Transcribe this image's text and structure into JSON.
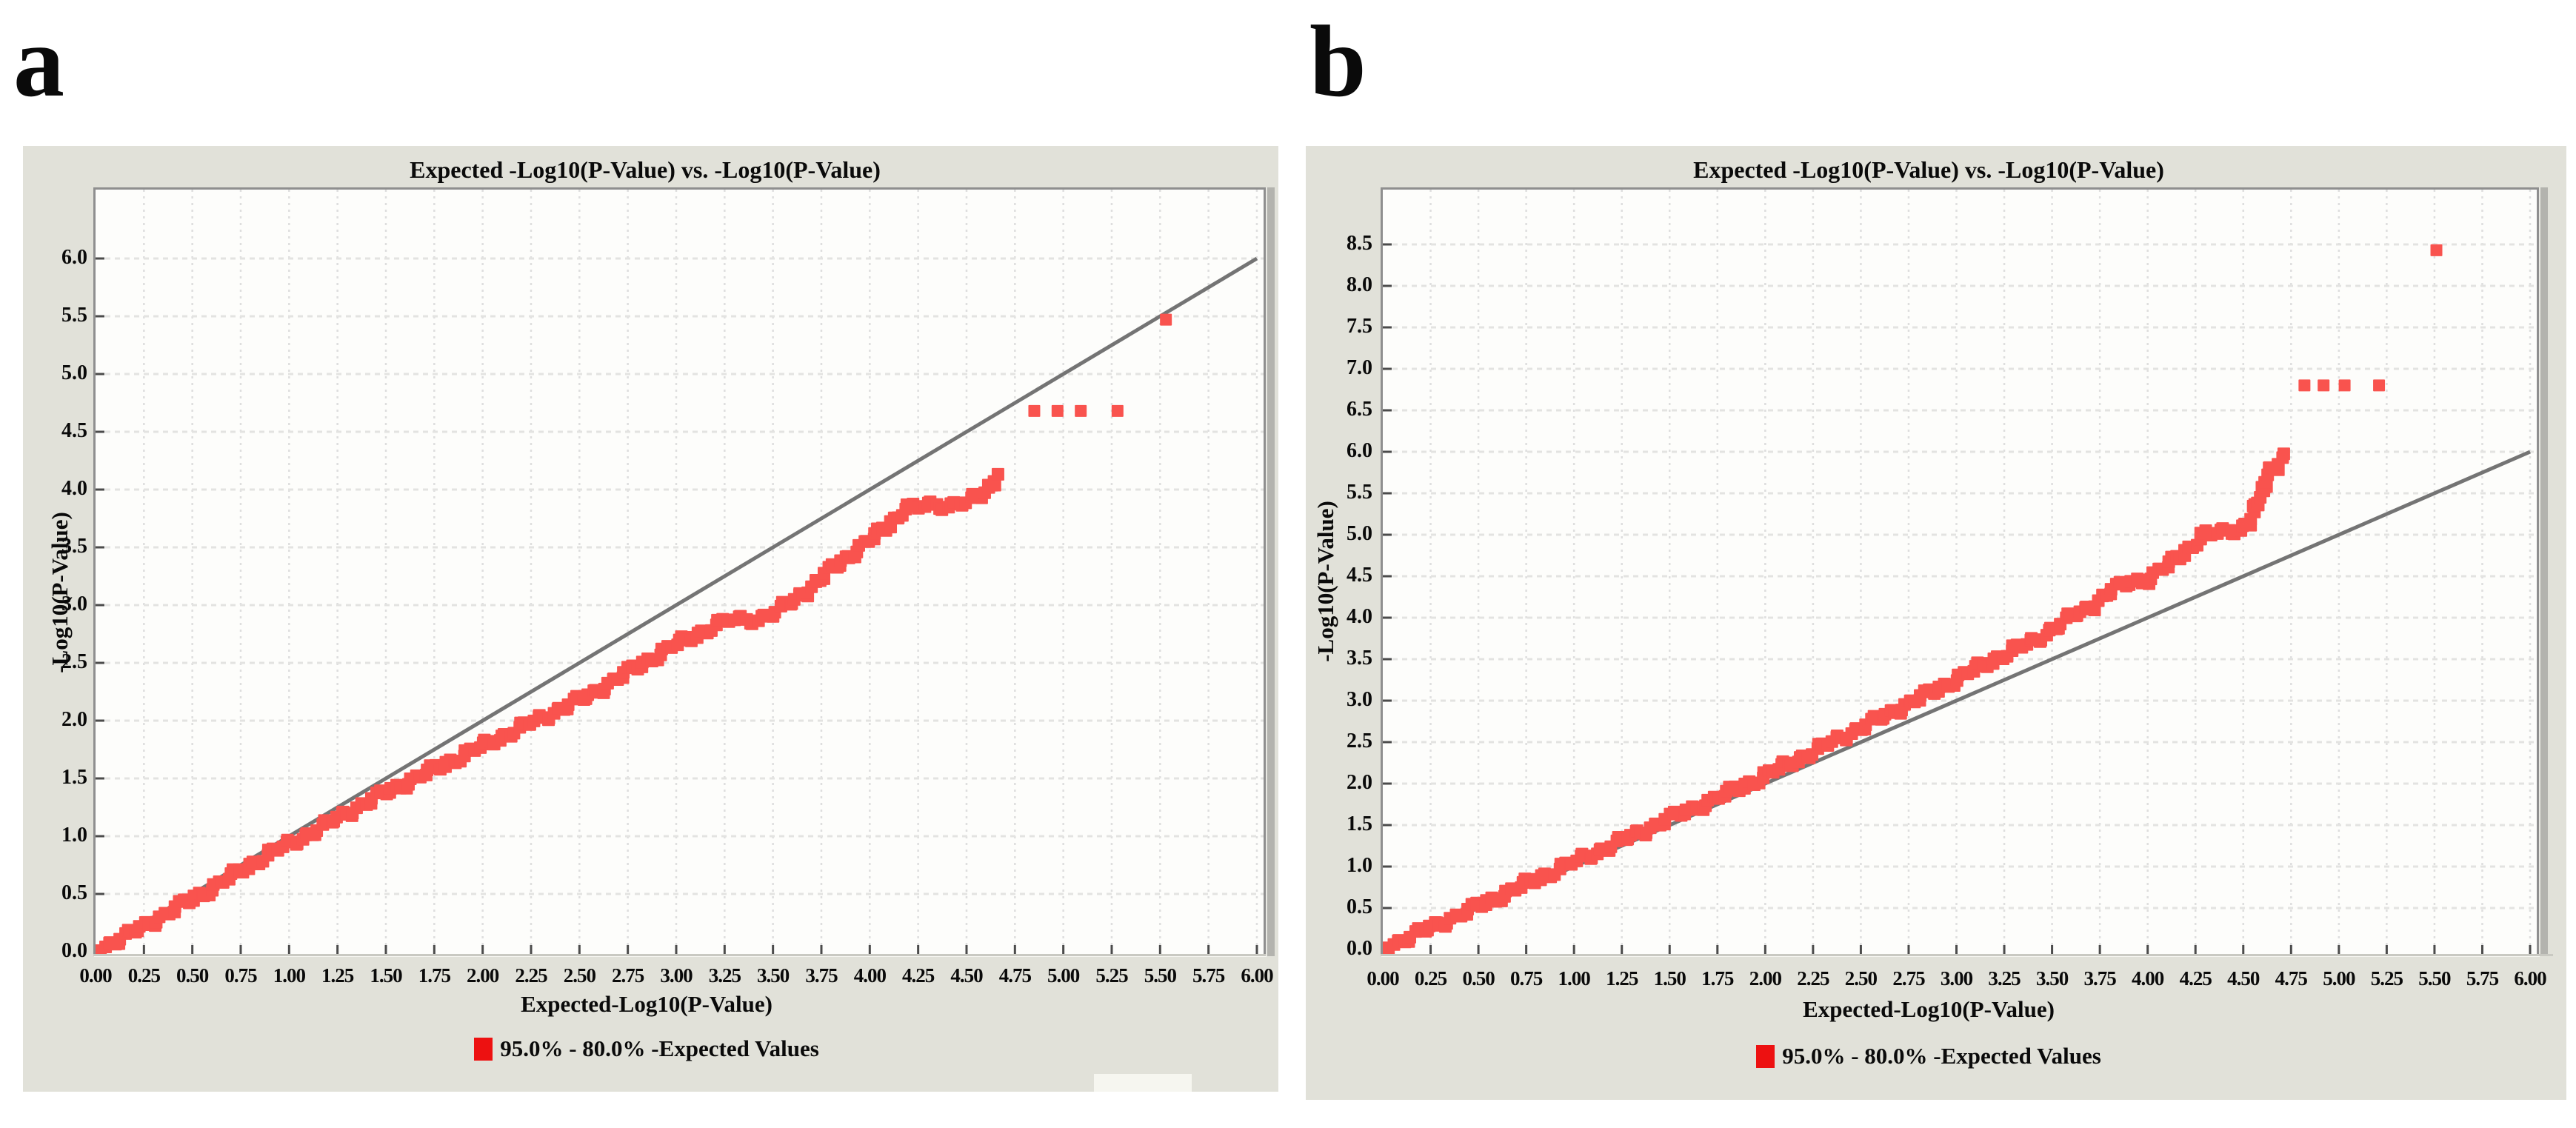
{
  "figure": {
    "panel_a_label": "a",
    "panel_b_label": "b"
  },
  "colors": {
    "page_bg": "#ffffff",
    "panel_bg": "#e1e1d9",
    "plot_bg": "#fdfdfb",
    "grid_horizontal": "#e3e3e1",
    "grid_vertical": "#dedede",
    "frame_border": "#8f8f8f",
    "tick_mark": "#4b4b4b",
    "reference_line": "#747474",
    "marker": "#f9534e",
    "legend_marker": "#ed1111",
    "text": "#0a0a0a"
  },
  "chart_data": [
    {
      "id": "a",
      "type": "scatter",
      "title": "Expected -Log10(P-Value) vs. -Log10(P-Value)",
      "xlabel": "Expected-Log10(P-Value)",
      "ylabel": "-Log10(P-Value)",
      "legend_label": "95.0% - 80.0% -Expected Values",
      "legend_position": "bottom",
      "grid": true,
      "xlim": [
        0,
        6
      ],
      "ylim": [
        0,
        6
      ],
      "x_tick_step": 0.25,
      "y_tick_step": 0.5,
      "x_ticks": [
        "0.00",
        "0.25",
        "0.50",
        "0.75",
        "1.00",
        "1.25",
        "1.50",
        "1.75",
        "2.00",
        "2.25",
        "2.50",
        "2.75",
        "3.00",
        "3.25",
        "3.50",
        "3.75",
        "4.00",
        "4.25",
        "4.50",
        "4.75",
        "5.00",
        "5.25",
        "5.50",
        "5.75",
        "6.00"
      ],
      "y_ticks": [
        "0.0",
        "0.5",
        "1.0",
        "1.5",
        "2.0",
        "2.5",
        "3.0",
        "3.5",
        "4.0",
        "4.5",
        "5.0",
        "5.5",
        "6.0"
      ],
      "reference_line": {
        "type": "identity",
        "from": [
          0,
          0
        ],
        "to": [
          6,
          6
        ]
      },
      "band_points": [
        [
          0.0,
          0.01
        ],
        [
          0.15,
          0.13
        ],
        [
          0.3,
          0.27
        ],
        [
          0.45,
          0.41
        ],
        [
          0.6,
          0.55
        ],
        [
          0.75,
          0.7
        ],
        [
          0.9,
          0.85
        ],
        [
          1.05,
          0.97
        ],
        [
          1.2,
          1.11
        ],
        [
          1.35,
          1.25
        ],
        [
          1.5,
          1.38
        ],
        [
          1.65,
          1.5
        ],
        [
          1.8,
          1.62
        ],
        [
          1.95,
          1.74
        ],
        [
          2.1,
          1.86
        ],
        [
          2.25,
          1.98
        ],
        [
          2.4,
          2.1
        ],
        [
          2.55,
          2.22
        ],
        [
          2.7,
          2.37
        ],
        [
          2.85,
          2.52
        ],
        [
          3.0,
          2.66
        ],
        [
          3.1,
          2.74
        ],
        [
          3.2,
          2.82
        ],
        [
          3.28,
          2.87
        ],
        [
          3.42,
          2.88
        ],
        [
          3.5,
          2.93
        ],
        [
          3.6,
          3.03
        ],
        [
          3.7,
          3.16
        ],
        [
          3.8,
          3.31
        ],
        [
          3.9,
          3.44
        ],
        [
          4.0,
          3.56
        ],
        [
          4.1,
          3.7
        ],
        [
          4.18,
          3.83
        ],
        [
          4.3,
          3.86
        ],
        [
          4.42,
          3.87
        ],
        [
          4.5,
          3.9
        ],
        [
          4.57,
          3.93
        ],
        [
          4.62,
          4.02
        ],
        [
          4.67,
          4.17
        ]
      ],
      "outlier_points": [
        [
          4.85,
          4.68
        ],
        [
          4.97,
          4.68
        ],
        [
          5.09,
          4.68
        ],
        [
          5.28,
          4.68
        ],
        [
          5.53,
          5.47
        ]
      ]
    },
    {
      "id": "b",
      "type": "scatter",
      "title": "Expected -Log10(P-Value) vs. -Log10(P-Value)",
      "xlabel": "Expected-Log10(P-Value)",
      "ylabel": "-Log10(P-Value)",
      "legend_label": "95.0% - 80.0% -Expected Values",
      "legend_position": "bottom",
      "grid": true,
      "xlim": [
        0,
        6
      ],
      "ylim": [
        0,
        8.5
      ],
      "x_tick_step": 0.25,
      "y_tick_step": 0.5,
      "x_ticks": [
        "0.00",
        "0.25",
        "0.50",
        "0.75",
        "1.00",
        "1.25",
        "1.50",
        "1.75",
        "2.00",
        "2.25",
        "2.50",
        "2.75",
        "3.00",
        "3.25",
        "3.50",
        "3.75",
        "4.00",
        "4.25",
        "4.50",
        "4.75",
        "5.00",
        "5.25",
        "5.50",
        "5.75",
        "6.00"
      ],
      "y_ticks": [
        "0.0",
        "0.5",
        "1.0",
        "1.5",
        "2.0",
        "2.5",
        "3.0",
        "3.5",
        "4.0",
        "4.5",
        "5.0",
        "5.5",
        "6.0",
        "6.5",
        "7.0",
        "7.5",
        "8.0",
        "8.5"
      ],
      "reference_line": {
        "type": "identity",
        "from": [
          0,
          0
        ],
        "to": [
          6,
          6
        ]
      },
      "band_points": [
        [
          0.0,
          0.02
        ],
        [
          0.15,
          0.16
        ],
        [
          0.3,
          0.32
        ],
        [
          0.45,
          0.47
        ],
        [
          0.6,
          0.63
        ],
        [
          0.75,
          0.79
        ],
        [
          0.9,
          0.95
        ],
        [
          1.05,
          1.1
        ],
        [
          1.2,
          1.26
        ],
        [
          1.35,
          1.42
        ],
        [
          1.5,
          1.58
        ],
        [
          1.65,
          1.73
        ],
        [
          1.8,
          1.88
        ],
        [
          1.95,
          2.04
        ],
        [
          2.1,
          2.21
        ],
        [
          2.25,
          2.38
        ],
        [
          2.4,
          2.56
        ],
        [
          2.55,
          2.73
        ],
        [
          2.7,
          2.91
        ],
        [
          2.85,
          3.08
        ],
        [
          3.0,
          3.26
        ],
        [
          3.15,
          3.44
        ],
        [
          3.3,
          3.61
        ],
        [
          3.4,
          3.71
        ],
        [
          3.5,
          3.86
        ],
        [
          3.6,
          4.01
        ],
        [
          3.7,
          4.13
        ],
        [
          3.8,
          4.31
        ],
        [
          3.9,
          4.43
        ],
        [
          4.0,
          4.47
        ],
        [
          4.1,
          4.62
        ],
        [
          4.2,
          4.81
        ],
        [
          4.3,
          5.0
        ],
        [
          4.4,
          5.03
        ],
        [
          4.48,
          5.08
        ],
        [
          4.53,
          5.13
        ],
        [
          4.57,
          5.36
        ],
        [
          4.6,
          5.5
        ],
        [
          4.63,
          5.78
        ],
        [
          4.68,
          5.81
        ],
        [
          4.72,
          5.95
        ]
      ],
      "outlier_points": [
        [
          4.82,
          6.8
        ],
        [
          4.92,
          6.8
        ],
        [
          5.03,
          6.8
        ],
        [
          5.21,
          6.8
        ],
        [
          5.51,
          8.43
        ]
      ]
    }
  ]
}
